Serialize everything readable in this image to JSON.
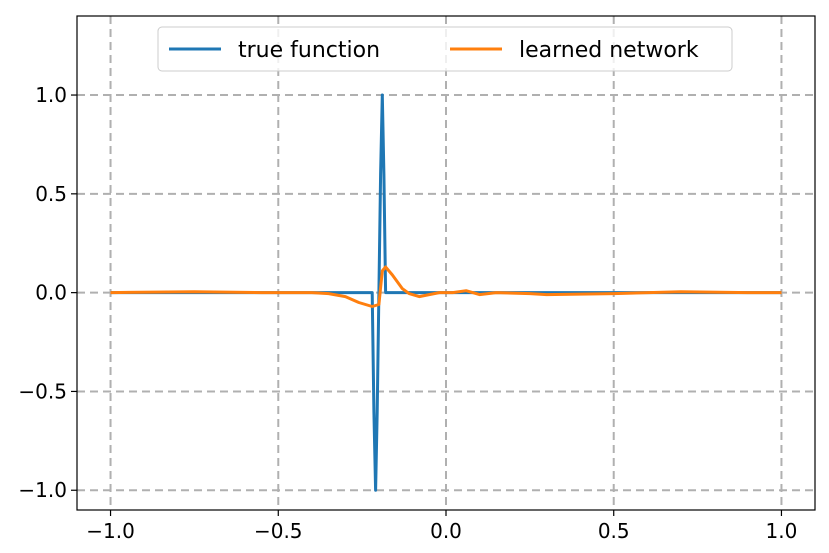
{
  "chart_data": {
    "type": "line",
    "title": "",
    "xlabel": "",
    "ylabel": "",
    "xlim": [
      -1.1,
      1.1
    ],
    "ylim": [
      -1.1,
      1.4
    ],
    "grid": true,
    "legend_position": "top-center",
    "x_ticks": [
      -1.0,
      -0.5,
      0.0,
      0.5,
      1.0
    ],
    "y_ticks": [
      -1.0,
      -0.5,
      0.0,
      0.5,
      1.0
    ],
    "x_tick_labels": [
      "−1.0",
      "−0.5",
      "0.0",
      "0.5",
      "1.0"
    ],
    "y_tick_labels": [
      "−1.0",
      "−0.5",
      "0.0",
      "0.5",
      "1.0"
    ],
    "series": [
      {
        "name": "true function",
        "color": "#1f77b4",
        "x": [
          -1.0,
          -0.22,
          -0.215,
          -0.21,
          -0.205,
          -0.2,
          -0.195,
          -0.19,
          -0.185,
          -0.18,
          1.0
        ],
        "y": [
          0.0,
          0.0,
          -0.6,
          -1.0,
          -0.6,
          0.0,
          0.6,
          1.0,
          0.6,
          0.0,
          0.0
        ]
      },
      {
        "name": "learned network",
        "color": "#ff7f0e",
        "x": [
          -1.0,
          -0.75,
          -0.55,
          -0.4,
          -0.35,
          -0.3,
          -0.26,
          -0.22,
          -0.2,
          -0.19,
          -0.18,
          -0.16,
          -0.13,
          -0.11,
          -0.08,
          -0.05,
          -0.02,
          0.02,
          0.06,
          0.1,
          0.15,
          0.25,
          0.3,
          0.5,
          0.7,
          0.9,
          1.0
        ],
        "y": [
          0.0,
          0.005,
          0.0,
          0.0,
          -0.005,
          -0.02,
          -0.05,
          -0.07,
          -0.06,
          0.11,
          0.13,
          0.09,
          0.02,
          -0.005,
          -0.02,
          -0.01,
          0.0,
          0.0,
          0.01,
          -0.01,
          0.0,
          -0.005,
          -0.01,
          -0.005,
          0.005,
          0.0,
          0.0
        ]
      }
    ]
  }
}
